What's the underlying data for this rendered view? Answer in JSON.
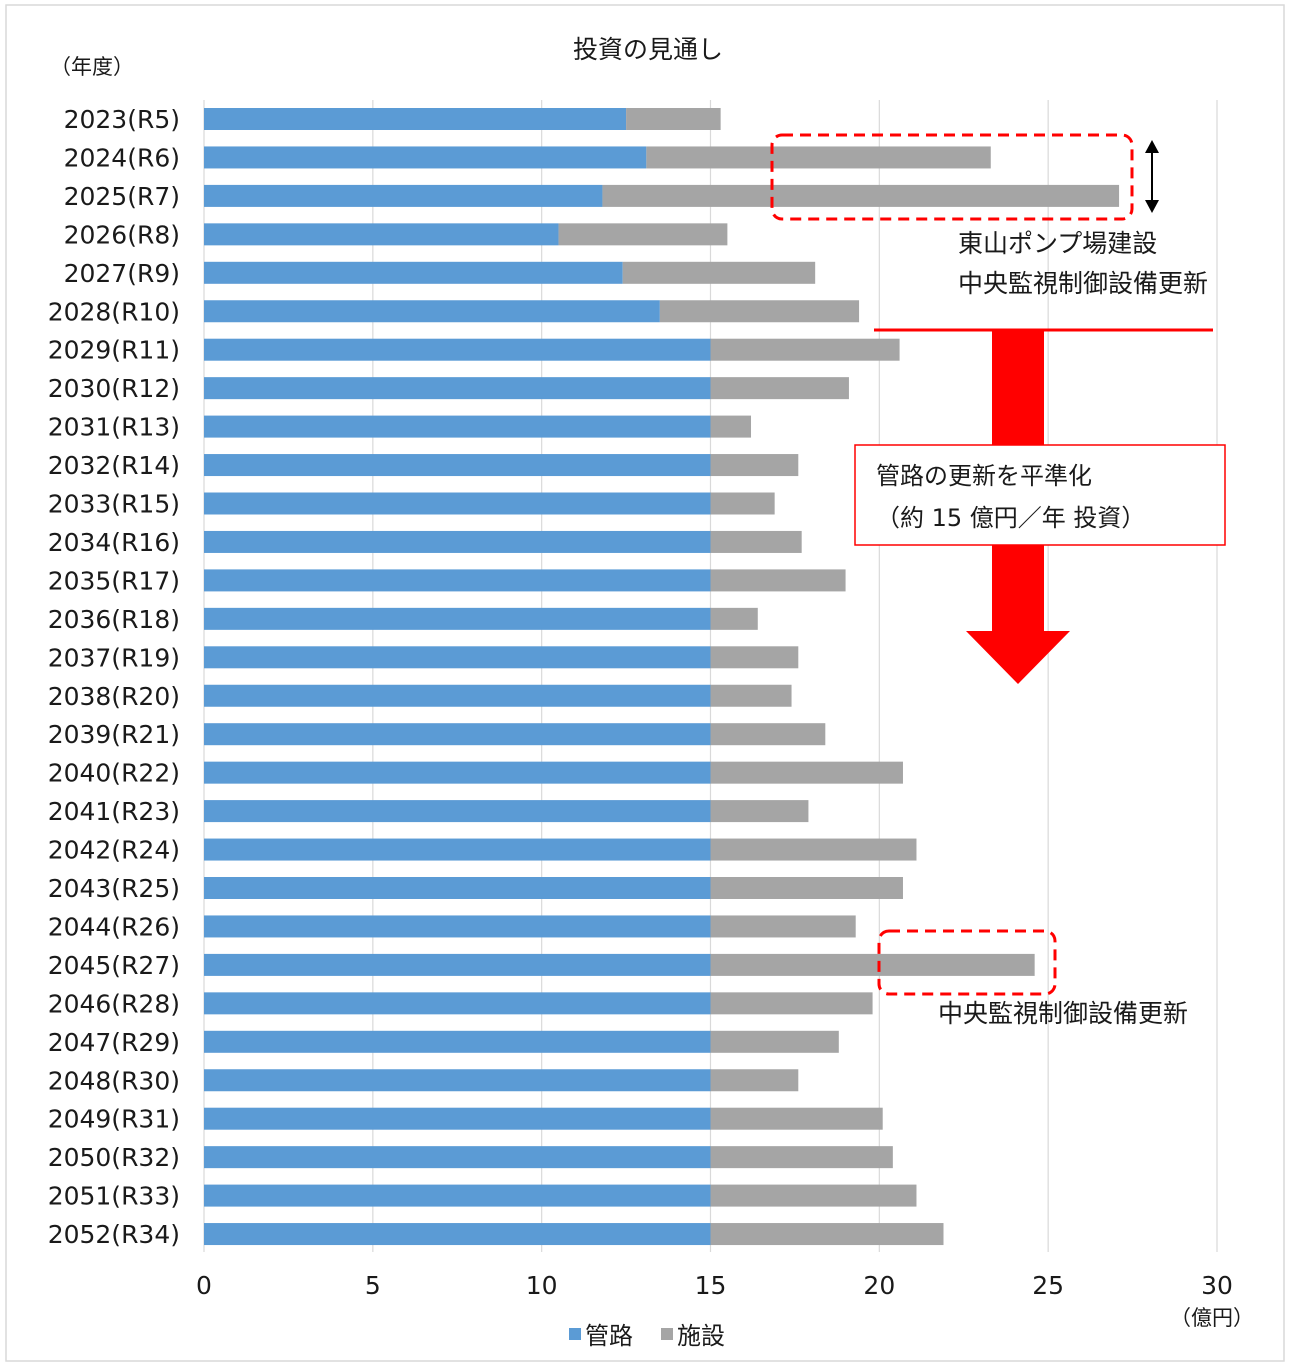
{
  "chart_data": {
    "type": "bar",
    "orientation": "horizontal",
    "stacked": true,
    "title": "投資の見通し",
    "ylabel": "（年度）",
    "xlabel": "（億円）",
    "xlim": [
      0,
      30
    ],
    "xticks": [
      "0",
      "5",
      "10",
      "15",
      "20",
      "25",
      "30"
    ],
    "grid": "vertical",
    "legend_position": "bottom",
    "categories": [
      "2023(R5)",
      "2024(R6)",
      "2025(R7)",
      "2026(R8)",
      "2027(R9)",
      "2028(R10)",
      "2029(R11)",
      "2030(R12)",
      "2031(R13)",
      "2032(R14)",
      "2033(R15)",
      "2034(R16)",
      "2035(R17)",
      "2036(R18)",
      "2037(R19)",
      "2038(R20)",
      "2039(R21)",
      "2040(R22)",
      "2041(R23)",
      "2042(R24)",
      "2043(R25)",
      "2044(R26)",
      "2045(R27)",
      "2046(R28)",
      "2047(R29)",
      "2048(R30)",
      "2049(R31)",
      "2050(R32)",
      "2051(R33)",
      "2052(R34)"
    ],
    "series": [
      {
        "name": "管路",
        "color": "#5b9bd5",
        "values": [
          12.5,
          13.1,
          11.8,
          10.5,
          12.4,
          13.5,
          15,
          15,
          15,
          15,
          15,
          15,
          15,
          15,
          15,
          15,
          15,
          15,
          15,
          15,
          15,
          15,
          15,
          15,
          15,
          15,
          15,
          15,
          15,
          15
        ]
      },
      {
        "name": "施設",
        "color": "#a5a5a5",
        "values": [
          2.8,
          10.2,
          15.3,
          5.0,
          5.7,
          5.9,
          5.6,
          4.1,
          1.2,
          2.6,
          1.9,
          2.7,
          4.0,
          1.4,
          2.6,
          2.4,
          3.4,
          5.7,
          2.9,
          6.1,
          5.7,
          4.3,
          9.6,
          4.8,
          3.8,
          2.6,
          5.1,
          5.4,
          6.1,
          6.9
        ]
      }
    ],
    "annotations": {
      "box_top_label_1": "東山ポンプ場建設",
      "box_top_label_2": "中央監視制御設備更新",
      "box_bottom_label": "中央監視制御設備更新",
      "callout_line_1": "管路の更新を平準化",
      "callout_line_2": "（約 15 億円／年 投資）",
      "highlight_color": "#ff0000"
    }
  }
}
